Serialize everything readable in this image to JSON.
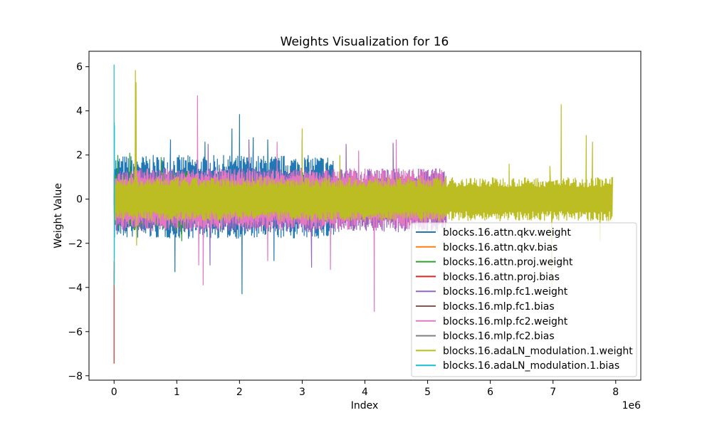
{
  "chart_data": {
    "type": "line",
    "title": "Weights Visualization for 16",
    "xlabel": "Index",
    "ylabel": "Weight Value",
    "x_offset_label": "1e6",
    "xlim": [
      -0.4,
      8.4
    ],
    "ylim": [
      -8.2,
      6.7
    ],
    "x_ticks": [
      0,
      1,
      2,
      3,
      4,
      5,
      6,
      7,
      8
    ],
    "y_ticks": [
      -8,
      -6,
      -4,
      -2,
      0,
      2,
      4,
      6
    ],
    "grid": false,
    "legend_position": "lower-right",
    "series": [
      {
        "name": "blocks.16.attn.qkv.weight",
        "color": "#1f77b4",
        "x_range": [
          0.0,
          3.5
        ],
        "typical_low": -1.8,
        "typical_high": 2.0,
        "peaks": [
          [
            0.9,
            2.7
          ],
          [
            0.97,
            -3.3
          ],
          [
            1.45,
            2.6
          ],
          [
            1.88,
            3.2
          ],
          [
            2.0,
            3.85
          ],
          [
            2.04,
            -4.3
          ],
          [
            2.22,
            2.8
          ],
          [
            2.45,
            2.7
          ],
          [
            2.55,
            -2.8
          ],
          [
            3.0,
            2.7
          ]
        ]
      },
      {
        "name": "blocks.16.attn.qkv.bias",
        "color": "#ff7f0e",
        "x_range": [
          0.0,
          0.006
        ],
        "typical_low": -1.0,
        "typical_high": 1.0,
        "peaks": []
      },
      {
        "name": "blocks.16.attn.proj.weight",
        "color": "#2ca02c",
        "x_range": [
          0.0,
          1.18
        ],
        "typical_low": -1.4,
        "typical_high": 1.3,
        "peaks": [
          [
            0.06,
            2.0
          ],
          [
            0.25,
            2.1
          ],
          [
            0.75,
            1.9
          ],
          [
            1.08,
            -1.9
          ]
        ]
      },
      {
        "name": "blocks.16.attn.proj.bias",
        "color": "#d62728",
        "x_range": [
          0.0,
          0.004
        ],
        "typical_low": -3.8,
        "typical_high": -3.8,
        "peaks": [
          [
            0.0,
            -7.45
          ],
          [
            0.001,
            -3.8
          ]
        ]
      },
      {
        "name": "blocks.16.mlp.fc1.weight",
        "color": "#9467bd",
        "x_range": [
          0.0,
          5.3
        ],
        "typical_low": -1.5,
        "typical_high": 1.4,
        "peaks": [
          [
            1.5,
            2.5
          ],
          [
            2.15,
            2.7
          ],
          [
            3.7,
            2.5
          ],
          [
            4.45,
            2.55
          ],
          [
            1.53,
            -3.0
          ],
          [
            3.15,
            -3.1
          ]
        ]
      },
      {
        "name": "blocks.16.mlp.fc1.bias",
        "color": "#8c564b",
        "x_range": [
          0.0,
          0.02
        ],
        "typical_low": -0.8,
        "typical_high": 0.6,
        "peaks": []
      },
      {
        "name": "blocks.16.mlp.fc2.weight",
        "color": "#e377c2",
        "x_range": [
          0.0,
          5.3
        ],
        "typical_low": -1.4,
        "typical_high": 1.4,
        "peaks": [
          [
            1.33,
            4.7
          ],
          [
            2.6,
            2.6
          ],
          [
            3.9,
            2.2
          ],
          [
            4.5,
            2.7
          ],
          [
            1.35,
            -3.0
          ],
          [
            1.42,
            -3.9
          ],
          [
            3.45,
            -3.2
          ],
          [
            4.15,
            -5.1
          ],
          [
            2.45,
            -2.8
          ]
        ]
      },
      {
        "name": "blocks.16.mlp.fc2.bias",
        "color": "#7f7f7f",
        "x_range": [
          0.0,
          0.005
        ],
        "typical_low": -0.4,
        "typical_high": 0.4,
        "peaks": []
      },
      {
        "name": "blocks.16.adaLN_modulation.1.weight",
        "color": "#bcbd22",
        "x_range": [
          0.0,
          7.95
        ],
        "typical_low": -1.0,
        "typical_high": 1.0,
        "peaks": [
          [
            0.34,
            5.85
          ],
          [
            0.35,
            5.3
          ],
          [
            0.36,
            -2.1
          ],
          [
            3.0,
            3.2
          ],
          [
            3.6,
            2.0
          ],
          [
            6.3,
            1.6
          ],
          [
            6.95,
            1.5
          ],
          [
            6.98,
            -4.0
          ],
          [
            7.13,
            4.3
          ],
          [
            7.53,
            2.9
          ],
          [
            7.63,
            2.6
          ],
          [
            7.75,
            -1.9
          ]
        ]
      },
      {
        "name": "blocks.16.adaLN_modulation.1.bias",
        "color": "#17becf",
        "x_range": [
          0.0,
          0.006
        ],
        "typical_low": -3.8,
        "typical_high": 4.8,
        "peaks": [
          [
            0.0,
            6.1
          ],
          [
            0.002,
            -3.9
          ]
        ]
      }
    ]
  }
}
